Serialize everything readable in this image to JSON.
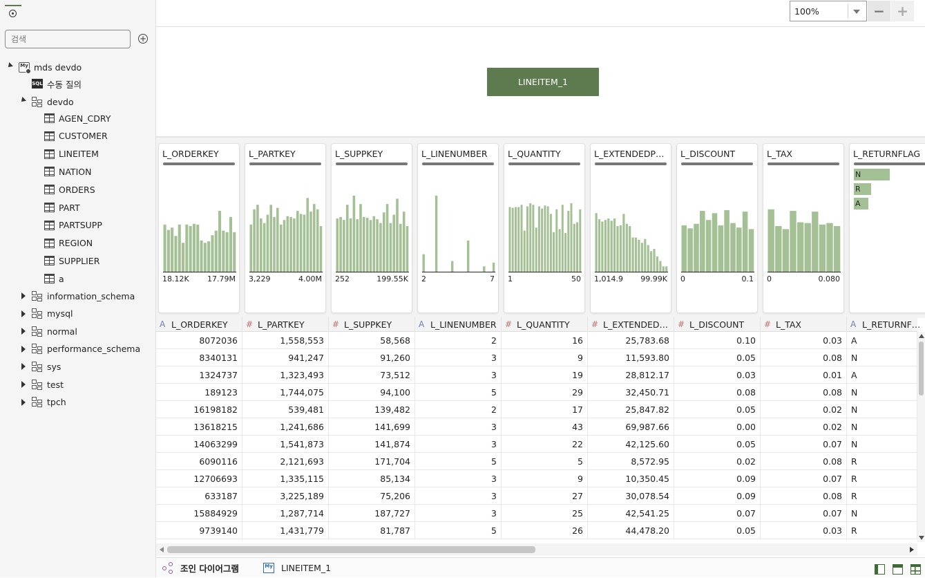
{
  "search": {
    "placeholder": "검색"
  },
  "tree": {
    "connection": "mds devdo",
    "manual_query": "수동 질의",
    "schema_open": "devdo",
    "tables": [
      "AGEN_CDRY",
      "CUSTOMER",
      "LINEITEM",
      "NATION",
      "ORDERS",
      "PART",
      "PARTSUPP",
      "REGION",
      "SUPPLIER",
      "a"
    ],
    "schemas_closed": [
      "information_schema",
      "mysql",
      "normal",
      "performance_schema",
      "sys",
      "test",
      "tpch"
    ]
  },
  "zoom": {
    "value": "100%",
    "minus": "−",
    "plus": "+"
  },
  "diagram": {
    "node_label": "LINEITEM_1"
  },
  "chart_data": [
    {
      "type": "bar",
      "title": "L_ORDERKEY",
      "min_label": "18.12K",
      "max_label": "17.79M",
      "values": [
        0.62,
        0.55,
        0.58,
        0.47,
        0.62,
        0.38,
        0.62,
        0.6,
        0.63,
        0.62,
        0.41,
        0.38,
        0.4,
        0.48,
        0.54,
        0.8,
        0.54,
        0.52,
        0.72,
        0.52
      ]
    },
    {
      "type": "bar",
      "title": "L_PARTKEY",
      "min_label": "3,229",
      "max_label": "4.00M",
      "values": [
        0.62,
        0.82,
        0.88,
        0.7,
        0.64,
        0.75,
        0.88,
        0.72,
        0.84,
        0.62,
        0.68,
        0.73,
        0.72,
        0.7,
        0.8,
        0.76,
        0.75,
        0.97,
        0.79,
        0.89,
        0.82,
        0.6
      ]
    },
    {
      "type": "bar",
      "title": "L_SUPPKEY",
      "min_label": "252",
      "max_label": "199.55K",
      "values": [
        0.7,
        0.72,
        0.68,
        0.88,
        0.7,
        1.0,
        0.69,
        0.89,
        0.72,
        0.71,
        0.68,
        0.73,
        0.69,
        0.64,
        0.78,
        0.89,
        0.64,
        0.75,
        0.96,
        0.63,
        0.79,
        0.6
      ]
    },
    {
      "type": "bar",
      "title": "L_LINENUMBER",
      "min_label": "2",
      "max_label": "7",
      "values": [
        0.23,
        0,
        0,
        0,
        1.0,
        0,
        0,
        0,
        0,
        0.14,
        0,
        0,
        0,
        0,
        0.41,
        0,
        0,
        0,
        0,
        0.07,
        0,
        0,
        0.12
      ]
    },
    {
      "type": "bar",
      "title": "L_QUANTITY",
      "min_label": "1",
      "max_label": "50",
      "values": [
        0.85,
        0.84,
        0.85,
        0.85,
        0.88,
        0.54,
        0.86,
        0.9,
        0.88,
        0.58,
        0.86,
        0.83,
        0.87,
        0.86,
        0.76,
        0.52,
        0.82,
        0.56,
        0.88,
        0.51,
        0.8,
        0.9,
        0.63,
        0.65,
        0.82
      ]
    },
    {
      "type": "bar",
      "title": "L_EXTENDEDPRICE",
      "min_label": "1,014.9",
      "max_label": "99.99K",
      "values": [
        0.77,
        0.69,
        0.66,
        0.68,
        0.7,
        0.67,
        0.7,
        0.6,
        0.61,
        0.76,
        0.63,
        0.6,
        0.45,
        0.45,
        0.42,
        0.38,
        0.43,
        0.35,
        0.27,
        0.3,
        0.2,
        0.14,
        0.07,
        0.07
      ]
    },
    {
      "type": "bar",
      "title": "L_DISCOUNT",
      "min_label": "0",
      "max_label": "0.1",
      "values": [
        0.61,
        0.57,
        0.63,
        0.8,
        0.68,
        0.77,
        0.61,
        0.81,
        0.64,
        0.58,
        0.79,
        0.56
      ]
    },
    {
      "type": "bar",
      "title": "L_TAX",
      "min_label": "0",
      "max_label": "0.080",
      "values": [
        0.82,
        0.6,
        0.56,
        0.8,
        0.65,
        0.64,
        0.79,
        0.62,
        0.64,
        0.6
      ]
    },
    {
      "type": "bar",
      "title": "L_RETURNFLAG",
      "categories": [
        "N",
        "R",
        "A"
      ],
      "values": [
        1.0,
        0.48,
        0.4
      ]
    }
  ],
  "columns": [
    {
      "name": "L_ORDERKEY",
      "type": "A"
    },
    {
      "name": "L_PARTKEY",
      "type": "#"
    },
    {
      "name": "L_SUPPKEY",
      "type": "#"
    },
    {
      "name": "L_LINENUMBER",
      "type": "A"
    },
    {
      "name": "L_QUANTITY",
      "type": "#"
    },
    {
      "name": "L_EXTENDED…",
      "type": "#"
    },
    {
      "name": "L_DISCOUNT",
      "type": "#"
    },
    {
      "name": "L_TAX",
      "type": "#"
    },
    {
      "name": "L_RETURNF…",
      "type": "A"
    }
  ],
  "rows": [
    [
      "8072036",
      "1,558,553",
      "58,568",
      "2",
      "16",
      "25,783.68",
      "0.10",
      "0.03",
      "A"
    ],
    [
      "8340131",
      "941,247",
      "91,260",
      "3",
      "9",
      "11,593.80",
      "0.05",
      "0.08",
      "N"
    ],
    [
      "1324737",
      "1,323,493",
      "73,512",
      "3",
      "19",
      "28,812.17",
      "0.03",
      "0.01",
      "A"
    ],
    [
      "189123",
      "1,744,075",
      "94,100",
      "5",
      "29",
      "32,450.71",
      "0.08",
      "0.08",
      "N"
    ],
    [
      "16198182",
      "539,481",
      "139,482",
      "2",
      "17",
      "25,847.82",
      "0.05",
      "0.02",
      "N"
    ],
    [
      "13618215",
      "1,241,686",
      "141,699",
      "3",
      "43",
      "69,987.66",
      "0.00",
      "0.02",
      "N"
    ],
    [
      "14063299",
      "1,541,873",
      "141,874",
      "3",
      "22",
      "42,125.60",
      "0.05",
      "0.07",
      "N"
    ],
    [
      "6090116",
      "2,121,693",
      "171,704",
      "5",
      "5",
      "8,572.95",
      "0.02",
      "0.08",
      "R"
    ],
    [
      "12706693",
      "1,335,115",
      "85,134",
      "3",
      "9",
      "10,350.45",
      "0.09",
      "0.07",
      "R"
    ],
    [
      "633187",
      "3,225,189",
      "75,206",
      "3",
      "27",
      "30,078.54",
      "0.09",
      "0.08",
      "R"
    ],
    [
      "15884929",
      "1,287,714",
      "187,727",
      "3",
      "25",
      "42,541.25",
      "0.07",
      "0.07",
      "N"
    ],
    [
      "9739140",
      "1,431,779",
      "81,787",
      "5",
      "26",
      "44,478.20",
      "0.05",
      "0.03",
      "R"
    ]
  ],
  "bottom_tabs": {
    "join": "조인 다이어그램",
    "lineitem": "LINEITEM_1"
  },
  "icons": {
    "connection": "mysql-connection-icon",
    "sql": "sql-icon",
    "schema": "schema-icon",
    "table": "table-icon"
  },
  "colors": {
    "accent": "#5e7b4f",
    "bar": "#a4c095"
  }
}
